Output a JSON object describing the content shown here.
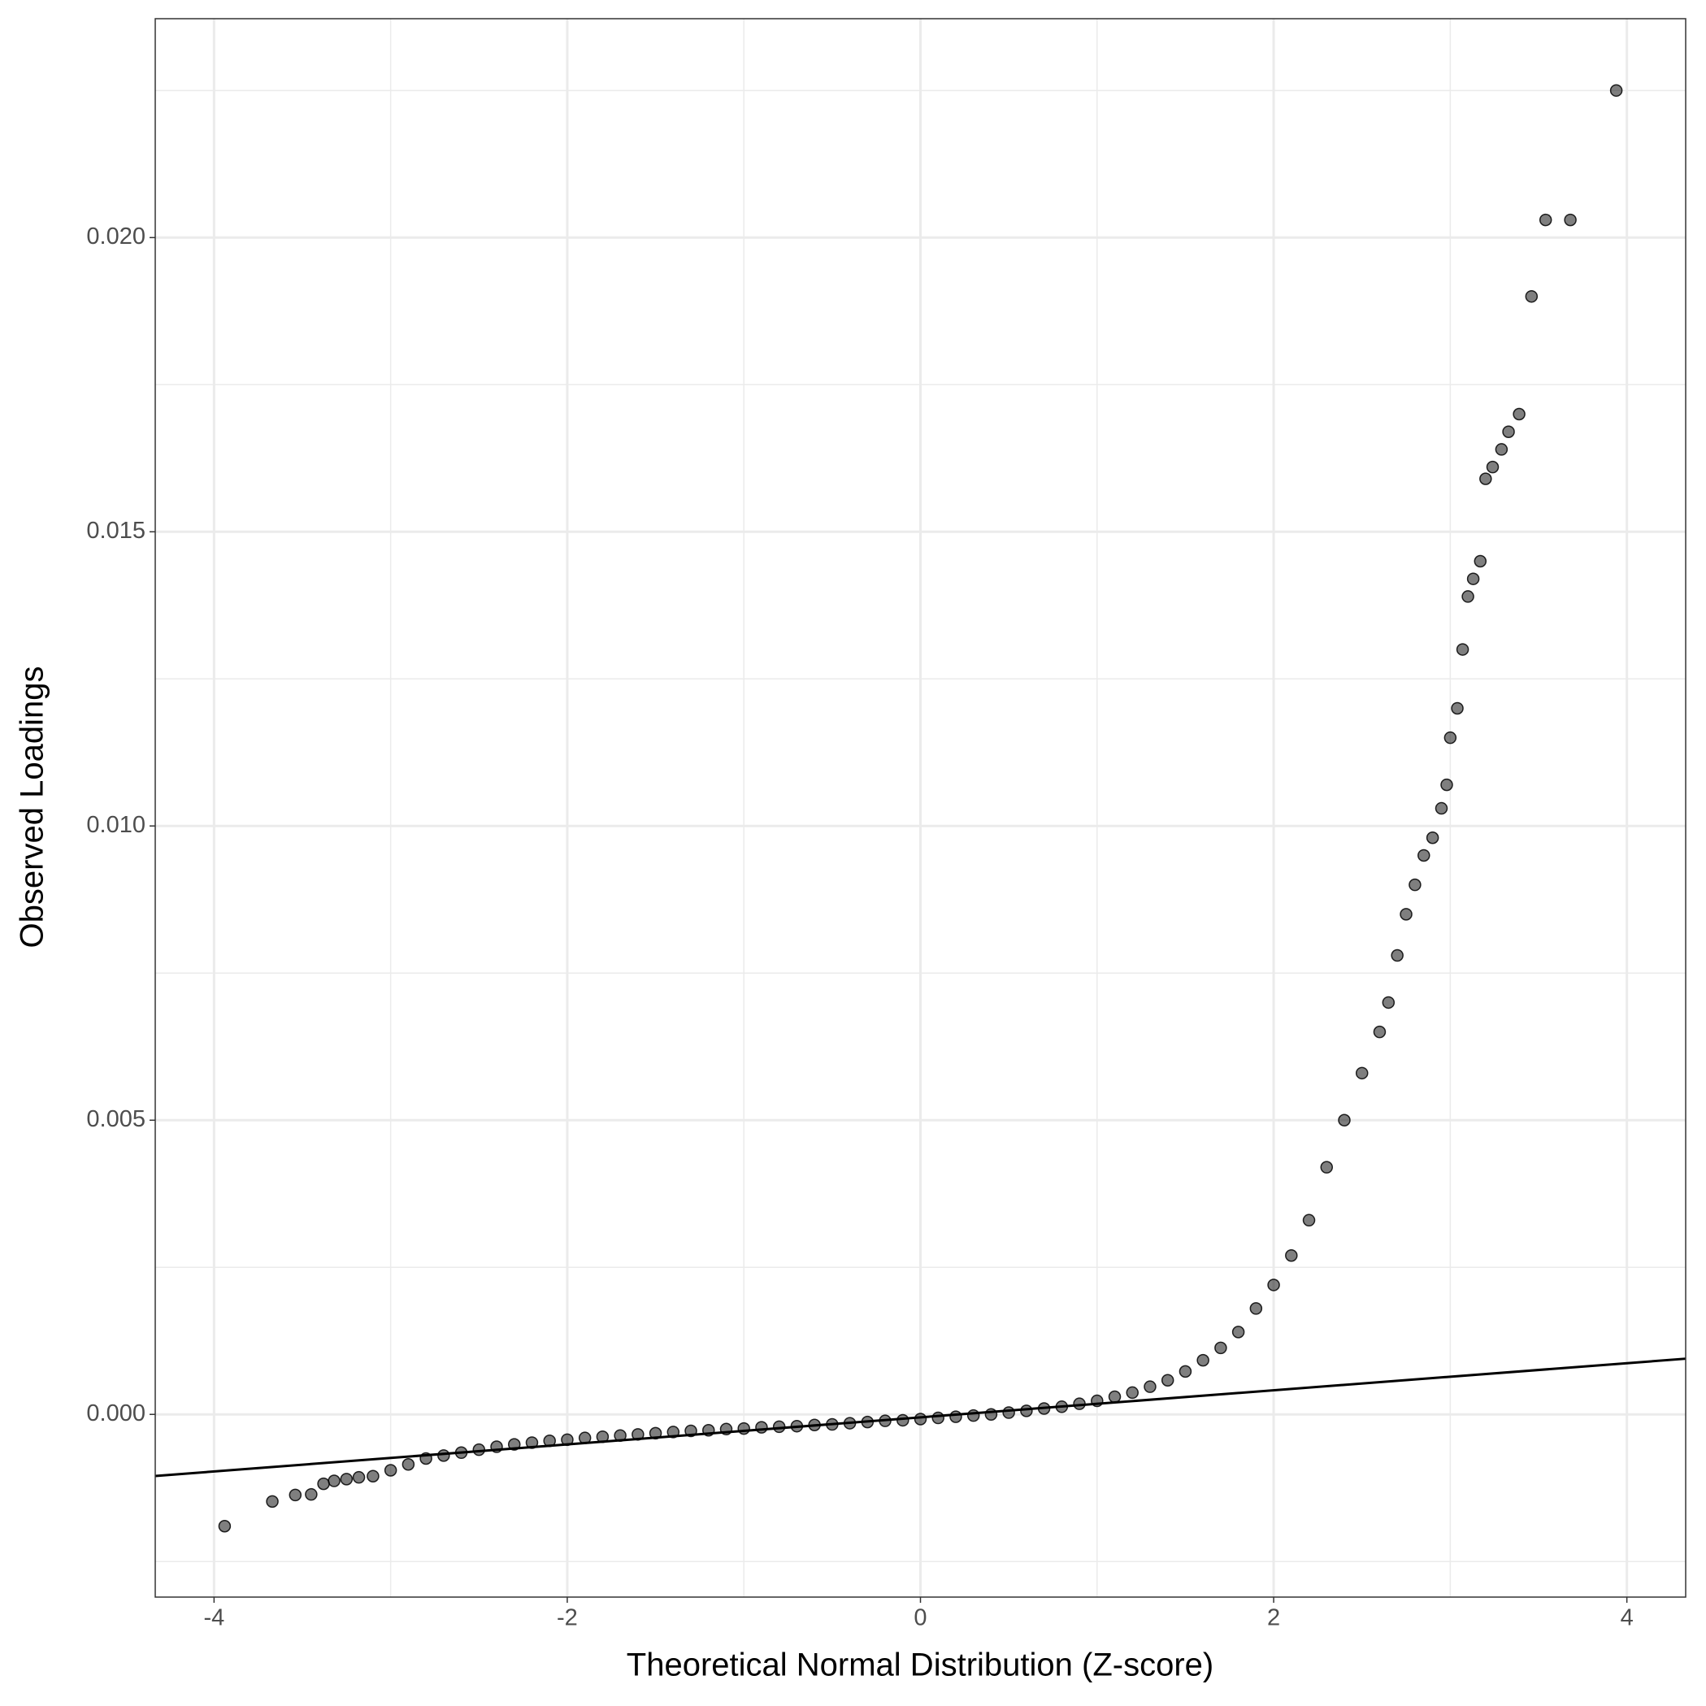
{
  "chart_data": {
    "type": "scatter",
    "x_label": "Theoretical Normal Distribution (Z-score)",
    "y_label": "Observed Loadings",
    "xlim": [
      -4.333,
      4.333
    ],
    "ylim": [
      -0.003105,
      0.02372
    ],
    "xticks": [
      -4,
      -2,
      0,
      2,
      4
    ],
    "yticks": [
      {
        "value": 0,
        "label": "0.000"
      },
      {
        "value": 0.005,
        "label": "0.005"
      },
      {
        "value": 0.01,
        "label": "0.010"
      },
      {
        "value": 0.015,
        "label": "0.015"
      },
      {
        "value": 0.02,
        "label": "0.020"
      }
    ],
    "grid": true,
    "color": "#000000",
    "opacity": 0.5,
    "reference_line": {
      "intercept": -5e-05,
      "slope": 0.00023,
      "color": "#000000"
    },
    "x": [
      -3.94,
      -3.67,
      -3.54,
      -3.45,
      -3.38,
      -3.32,
      -3.25,
      -3.18,
      -3.1,
      -3.0,
      -2.9,
      -2.8,
      -2.7,
      -2.6,
      -2.5,
      -2.4,
      -2.3,
      -2.2,
      -2.1,
      -2.0,
      -1.9,
      -1.8,
      -1.7,
      -1.6,
      -1.5,
      -1.4,
      -1.3,
      -1.2,
      -1.1,
      -1.0,
      -0.9,
      -0.8,
      -0.7,
      -0.6,
      -0.5,
      -0.4,
      -0.3,
      -0.2,
      -0.1,
      0,
      0.1,
      0.2,
      0.3,
      0.4,
      0.5,
      0.6,
      0.7,
      0.8,
      0.9,
      1.0,
      1.1,
      1.2,
      1.3,
      1.4,
      1.5,
      1.6,
      1.7,
      1.8,
      1.9,
      2.0,
      2.1,
      2.2,
      2.3,
      2.4,
      2.5,
      2.6,
      2.65,
      2.7,
      2.75,
      2.8,
      2.85,
      2.9,
      2.95,
      2.98,
      3.0,
      3.04,
      3.07,
      3.1,
      3.13,
      3.17,
      3.2,
      3.24,
      3.29,
      3.33,
      3.39,
      3.46,
      3.54,
      3.68,
      3.94
    ],
    "y": [
      -0.0019,
      -0.00148,
      -0.00137,
      -0.00136,
      -0.00118,
      -0.00113,
      -0.0011,
      -0.00107,
      -0.00105,
      -0.00095,
      -0.00085,
      -0.00075,
      -0.0007,
      -0.00065,
      -0.0006,
      -0.00055,
      -0.00051,
      -0.00048,
      -0.00045,
      -0.00043,
      -0.0004,
      -0.00038,
      -0.00036,
      -0.00034,
      -0.00032,
      -0.0003,
      -0.00028,
      -0.00027,
      -0.00025,
      -0.00024,
      -0.00022,
      -0.00021,
      -0.0002,
      -0.00018,
      -0.00017,
      -0.00015,
      -0.00013,
      -0.00011,
      -0.0001,
      -8e-05,
      -6e-05,
      -4e-05,
      -2e-05,
      0,
      3e-05,
      6e-05,
      0.0001,
      0.00013,
      0.00018,
      0.00023,
      0.0003,
      0.00037,
      0.00047,
      0.00058,
      0.00073,
      0.00092,
      0.00113,
      0.0014,
      0.0018,
      0.0022,
      0.0027,
      0.0033,
      0.0042,
      0.005,
      0.0058,
      0.0065,
      0.007,
      0.0078,
      0.0085,
      0.009,
      0.0095,
      0.0098,
      0.0103,
      0.0107,
      0.0115,
      0.012,
      0.013,
      0.0139,
      0.0142,
      0.0145,
      0.0159,
      0.0161,
      0.0164,
      0.0167,
      0.017,
      0.019,
      0.0203,
      0.0203,
      0.0225
    ]
  }
}
